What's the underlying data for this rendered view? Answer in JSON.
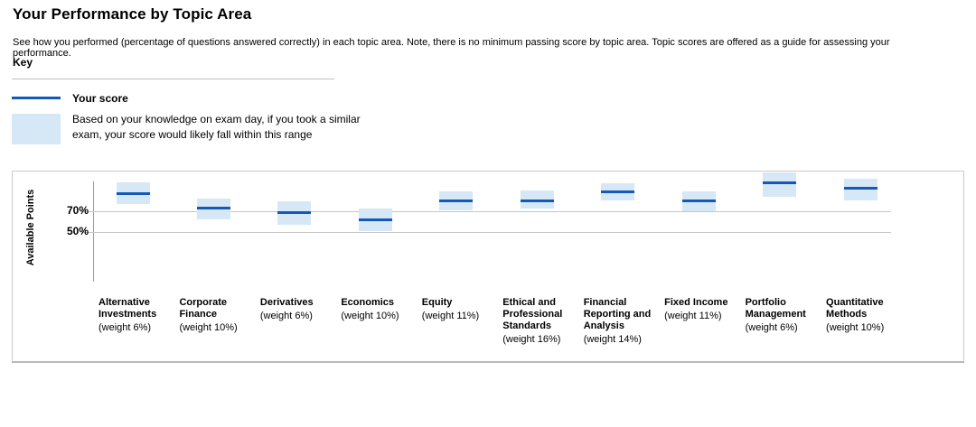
{
  "page": {
    "title": "Your Performance by Topic Area",
    "description": "See how you performed (percentage of questions answered correctly) in each topic area. Note, there is no minimum passing score by topic area. Topic scores are offered as a guide for assessing your performance."
  },
  "key": {
    "heading": "Key",
    "score_label": "Your score",
    "range_label": "Based on your knowledge on exam day, if you took a similar exam, your score would likely fall within this range"
  },
  "chart_data": {
    "type": "range-band",
    "ylabel": "Available Points",
    "yticks": [
      {
        "label": "70%",
        "value": 70
      },
      {
        "label": "50%",
        "value": 50
      }
    ],
    "grid": true,
    "legend_position": "above-chart",
    "colors": {
      "score_line": "#1459B8",
      "band": "#D6E8F5",
      "gridline": "#C6C6C6",
      "axis": "#9A9A9A"
    },
    "topics": [
      {
        "label": "Alternative Investments",
        "weight": "(weight 6%)",
        "score": 87,
        "band_low": 77,
        "band_high": 98
      },
      {
        "label": "Corporate Finance",
        "weight": "(weight 10%)",
        "score": 73,
        "band_low": 62,
        "band_high": 82
      },
      {
        "label": "Derivatives",
        "weight": "(weight 6%)",
        "score": 69,
        "band_low": 57,
        "band_high": 80
      },
      {
        "label": "Economics",
        "weight": "(weight 10%)",
        "score": 62,
        "band_low": 51,
        "band_high": 73
      },
      {
        "label": "Equity",
        "weight": "(weight 11%)",
        "score": 80,
        "band_low": 71,
        "band_high": 89
      },
      {
        "label": "Ethical and Professional Standards",
        "weight": "(weight 16%)",
        "score": 80,
        "band_low": 73,
        "band_high": 90
      },
      {
        "label": "Financial Reporting and Analysis",
        "weight": "(weight 14%)",
        "score": 89,
        "band_low": 80,
        "band_high": 97
      },
      {
        "label": "Fixed Income",
        "weight": "(weight 11%)",
        "score": 80,
        "band_low": 70,
        "band_high": 89
      },
      {
        "label": "Portfolio Management",
        "weight": "(weight 6%)",
        "score": 97,
        "band_low": 84,
        "band_high": 109
      },
      {
        "label": "Quantitative Methods",
        "weight": "(weight 10%)",
        "score": 92,
        "band_low": 80,
        "band_high": 101
      }
    ]
  }
}
